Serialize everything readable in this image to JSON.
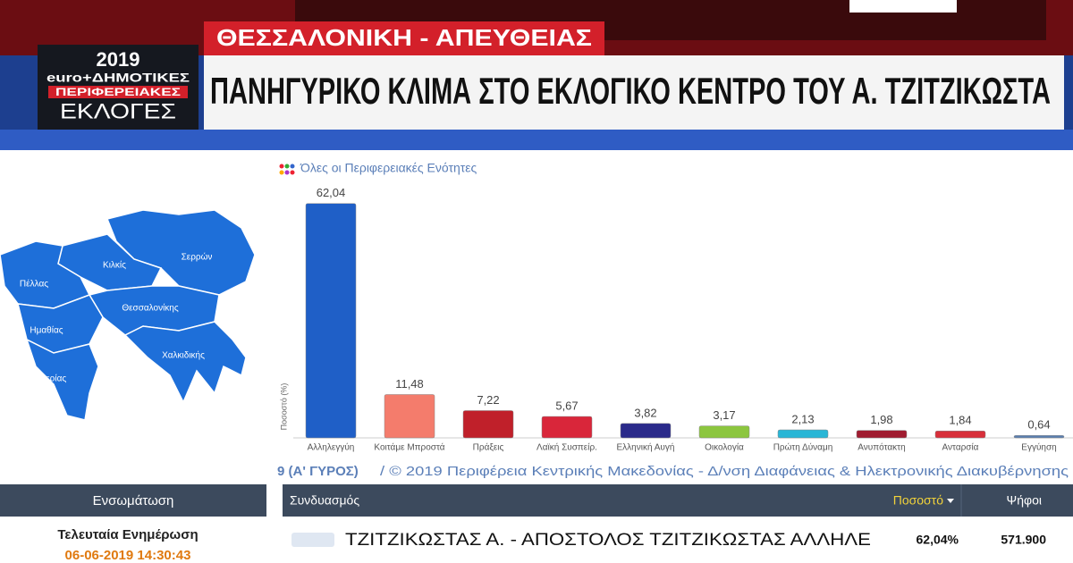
{
  "banner": {
    "year": "2019",
    "line1": "euro+ΔΗΜΟΤΙΚΕΣ",
    "line2": "ΠΕΡΙΦΕΡΕΙΑΚΕΣ",
    "line3": "ΕΚΛΟΓΕΣ",
    "location": "ΘΕΣΣΑΛΟΝΙΚΗ - ΑΠΕΥΘΕΙΑΣ",
    "headline": "ΠΑΝΗΓΥΡΙΚΟ ΚΛΙΜΑ ΣΤΟ ΕΚΛΟΓΙΚΟ ΚΕΝΤΡΟ ΤΟΥ Α. ΤΖΙΤΖΙΚΩΣΤΑ"
  },
  "map": {
    "labels": [
      "Σερρών",
      "Κιλκίς",
      "Πέλλας",
      "Θεσσαλονίκης",
      "Ημαθίας",
      "Χαλκιδικής",
      "Πιερίας"
    ]
  },
  "chart_data": {
    "type": "bar",
    "title": "Όλες οι Περιφερειακές Ενότητες",
    "y_label": "Ποσοστό (%)",
    "categories": [
      "Αλληλεγγύη",
      "Κοιτάμε Μπροστά",
      "Πράξεις",
      "Λαϊκή Συσπείρ.",
      "Ελληνική Αυγή",
      "Οικολογία",
      "Πρώτη Δύναμη",
      "Ανυπότακτη",
      "Ανταρσία",
      "Εγγύηση"
    ],
    "values": [
      62.04,
      11.48,
      7.22,
      5.67,
      3.82,
      3.17,
      2.13,
      1.98,
      1.84,
      0.64
    ],
    "value_labels": [
      "62,04",
      "11,48",
      "7,22",
      "5,67",
      "3,82",
      "3,17",
      "2,13",
      "1,98",
      "1,84",
      "0,64"
    ],
    "colors": [
      "#1f5fc7",
      "#f47c6c",
      "#c0202a",
      "#d9263a",
      "#2a2a8a",
      "#8cc63f",
      "#29b6d6",
      "#a01c30",
      "#d82f3a",
      "#5a7fb0"
    ],
    "ylim": [
      0,
      66
    ]
  },
  "footer": {
    "round": "9 (Α' ΓΥΡΟΣ)",
    "credit": "/ © 2019 Περιφέρεια Κεντρικής Μακεδονίας - Δ/νση Διαφάνειας & Ηλεκτρονικής Διακυβέρνησης"
  },
  "side": {
    "header": "Ενσωμάτωση",
    "label": "Τελευταία Ενημέρωση",
    "time": "06-06-2019 14:30:43"
  },
  "table": {
    "headers": [
      "Συνδυασμός",
      "Ποσοστό",
      "Ψήφοι"
    ],
    "rows": [
      [
        "ΤΖΙΤΖΙΚΩΣΤΑΣ Α. - ΑΠΟΣΤΟΛΟΣ ΤΖΙΤΖΙΚΩΣΤΑΣ ΑΛΛΗΛΕ",
        "62,04%",
        "571.900"
      ]
    ]
  }
}
